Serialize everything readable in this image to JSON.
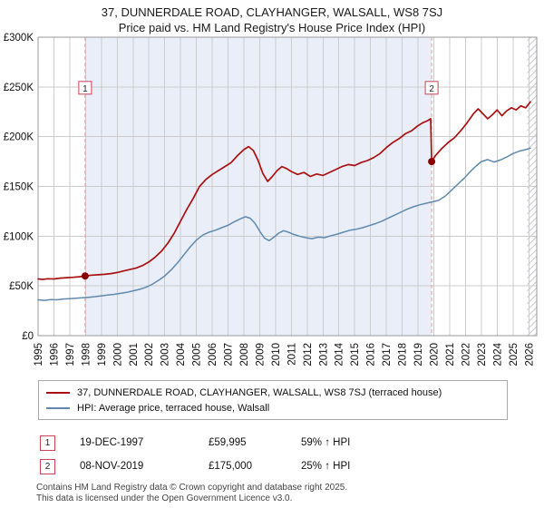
{
  "header": {
    "title": "37, DUNNERDALE ROAD, CLAYHANGER, WALSALL, WS8 7SJ",
    "subtitle": "Price paid vs. HM Land Registry's House Price Index (HPI)"
  },
  "chart_data": {
    "type": "line",
    "title": "37, DUNNERDALE ROAD, CLAYHANGER, WALSALL, WS8 7SJ",
    "subtitle": "Price paid vs. HM Land Registry's House Price Index (HPI)",
    "xlabel": "",
    "ylabel": "",
    "grid": true,
    "legend_position": "bottom",
    "xlim": [
      1995,
      2026.5
    ],
    "ylim": [
      0,
      300000
    ],
    "x_ticks": [
      1995,
      1996,
      1997,
      1998,
      1999,
      2000,
      2001,
      2002,
      2003,
      2004,
      2005,
      2006,
      2007,
      2008,
      2009,
      2010,
      2011,
      2012,
      2013,
      2014,
      2015,
      2016,
      2017,
      2018,
      2019,
      2020,
      2021,
      2022,
      2023,
      2024,
      2025,
      2026
    ],
    "y_ticks": [
      {
        "value": 0,
        "label": "£0"
      },
      {
        "value": 50000,
        "label": "£50K"
      },
      {
        "value": 100000,
        "label": "£100K"
      },
      {
        "value": 150000,
        "label": "£150K"
      },
      {
        "value": 200000,
        "label": "£200K"
      },
      {
        "value": 250000,
        "label": "£250K"
      },
      {
        "value": 300000,
        "label": "£300K"
      }
    ],
    "shaded_region": {
      "from": 1997.97,
      "to": 2019.86
    },
    "hatched_region": {
      "from": 2025.9,
      "to": 2026.5
    },
    "colors": {
      "shade": "#e9eef8",
      "grid": "#cccccc",
      "border": "#999999",
      "sale_line": "#e89a9a",
      "marker": "#8b0000",
      "marker_box_border": "#cc4455",
      "hatch": "#b9b9c9"
    },
    "markers": [
      {
        "label": "1",
        "x": 1997.97,
        "y": 59995
      },
      {
        "label": "2",
        "x": 2019.86,
        "y": 175000
      }
    ],
    "series": [
      {
        "name": "37, DUNNERDALE ROAD, CLAYHANGER, WALSALL, WS8 7SJ (terraced house)",
        "color": "#aa1111",
        "stroke_width": 1.7,
        "points": [
          [
            1995,
            57000
          ],
          [
            1995.3,
            56500
          ],
          [
            1995.6,
            57200
          ],
          [
            1996,
            57000
          ],
          [
            1996.4,
            57800
          ],
          [
            1996.8,
            58300
          ],
          [
            1997.2,
            58600
          ],
          [
            1997.6,
            59200
          ],
          [
            1997.97,
            59995
          ],
          [
            1998.4,
            60800
          ],
          [
            1998.8,
            61200
          ],
          [
            1999.2,
            61600
          ],
          [
            1999.6,
            62400
          ],
          [
            2000,
            63500
          ],
          [
            2000.4,
            65000
          ],
          [
            2000.8,
            66500
          ],
          [
            2001.2,
            68000
          ],
          [
            2001.6,
            70500
          ],
          [
            2002,
            74000
          ],
          [
            2002.4,
            79000
          ],
          [
            2002.8,
            85000
          ],
          [
            2003.2,
            93000
          ],
          [
            2003.6,
            103000
          ],
          [
            2004,
            115000
          ],
          [
            2004.4,
            127000
          ],
          [
            2004.8,
            138000
          ],
          [
            2005.2,
            150000
          ],
          [
            2005.6,
            157000
          ],
          [
            2006,
            162000
          ],
          [
            2006.4,
            166000
          ],
          [
            2006.8,
            170000
          ],
          [
            2007.2,
            174000
          ],
          [
            2007.6,
            181000
          ],
          [
            2008,
            187000
          ],
          [
            2008.3,
            190000
          ],
          [
            2008.6,
            186000
          ],
          [
            2008.9,
            176000
          ],
          [
            2009.2,
            163000
          ],
          [
            2009.5,
            155000
          ],
          [
            2009.8,
            160000
          ],
          [
            2010.1,
            166000
          ],
          [
            2010.4,
            170000
          ],
          [
            2010.7,
            168000
          ],
          [
            2011,
            165000
          ],
          [
            2011.4,
            162000
          ],
          [
            2011.8,
            164000
          ],
          [
            2012.2,
            160000
          ],
          [
            2012.6,
            162500
          ],
          [
            2013,
            161000
          ],
          [
            2013.4,
            164000
          ],
          [
            2013.8,
            167000
          ],
          [
            2014.2,
            170000
          ],
          [
            2014.6,
            172000
          ],
          [
            2015,
            171000
          ],
          [
            2015.4,
            174000
          ],
          [
            2015.8,
            176000
          ],
          [
            2016.2,
            179000
          ],
          [
            2016.6,
            183000
          ],
          [
            2017,
            189000
          ],
          [
            2017.4,
            194000
          ],
          [
            2017.8,
            198000
          ],
          [
            2018.2,
            203000
          ],
          [
            2018.6,
            206000
          ],
          [
            2019,
            211000
          ],
          [
            2019.3,
            214000
          ],
          [
            2019.6,
            216000
          ],
          [
            2019.8,
            218000
          ],
          [
            2019.86,
            175000
          ],
          [
            2020.1,
            181000
          ],
          [
            2020.5,
            188000
          ],
          [
            2020.9,
            194000
          ],
          [
            2021.3,
            199000
          ],
          [
            2021.7,
            206000
          ],
          [
            2022.1,
            214000
          ],
          [
            2022.5,
            223000
          ],
          [
            2022.8,
            228000
          ],
          [
            2023.1,
            223000
          ],
          [
            2023.4,
            218000
          ],
          [
            2023.7,
            222000
          ],
          [
            2024,
            227000
          ],
          [
            2024.3,
            221000
          ],
          [
            2024.6,
            226000
          ],
          [
            2024.9,
            229000
          ],
          [
            2025.2,
            227000
          ],
          [
            2025.5,
            231000
          ],
          [
            2025.8,
            229000
          ],
          [
            2026.1,
            235000
          ]
        ]
      },
      {
        "name": "HPI: Average price, terraced house, Walsall",
        "color": "#6189ae",
        "stroke_width": 1.5,
        "points": [
          [
            1995,
            36000
          ],
          [
            1995.4,
            35500
          ],
          [
            1995.8,
            36200
          ],
          [
            1996.2,
            36000
          ],
          [
            1996.6,
            36800
          ],
          [
            1997,
            37200
          ],
          [
            1997.4,
            37600
          ],
          [
            1997.8,
            38000
          ],
          [
            1998.2,
            38600
          ],
          [
            1998.6,
            39200
          ],
          [
            1999,
            40000
          ],
          [
            1999.4,
            40800
          ],
          [
            1999.8,
            41500
          ],
          [
            2000.2,
            42500
          ],
          [
            2000.6,
            43500
          ],
          [
            2001,
            45000
          ],
          [
            2001.4,
            46500
          ],
          [
            2001.8,
            48500
          ],
          [
            2002.2,
            51500
          ],
          [
            2002.6,
            55500
          ],
          [
            2003,
            60000
          ],
          [
            2003.4,
            66000
          ],
          [
            2003.8,
            73000
          ],
          [
            2004.2,
            81000
          ],
          [
            2004.6,
            89000
          ],
          [
            2005,
            96000
          ],
          [
            2005.4,
            101000
          ],
          [
            2005.8,
            104000
          ],
          [
            2006.2,
            106000
          ],
          [
            2006.6,
            108500
          ],
          [
            2007,
            111000
          ],
          [
            2007.4,
            114500
          ],
          [
            2007.8,
            117500
          ],
          [
            2008.1,
            119500
          ],
          [
            2008.4,
            118000
          ],
          [
            2008.7,
            113000
          ],
          [
            2009,
            105000
          ],
          [
            2009.3,
            98000
          ],
          [
            2009.6,
            95500
          ],
          [
            2009.9,
            99000
          ],
          [
            2010.2,
            103000
          ],
          [
            2010.5,
            105500
          ],
          [
            2010.8,
            104000
          ],
          [
            2011.1,
            102000
          ],
          [
            2011.5,
            100000
          ],
          [
            2011.9,
            98500
          ],
          [
            2012.3,
            97500
          ],
          [
            2012.7,
            99000
          ],
          [
            2013.1,
            98500
          ],
          [
            2013.5,
            100500
          ],
          [
            2013.9,
            102000
          ],
          [
            2014.3,
            104000
          ],
          [
            2014.7,
            106000
          ],
          [
            2015.1,
            107000
          ],
          [
            2015.5,
            108500
          ],
          [
            2015.9,
            110500
          ],
          [
            2016.3,
            112500
          ],
          [
            2016.7,
            115000
          ],
          [
            2017.1,
            118000
          ],
          [
            2017.5,
            121000
          ],
          [
            2017.9,
            124000
          ],
          [
            2018.3,
            127000
          ],
          [
            2018.7,
            129500
          ],
          [
            2019.1,
            131500
          ],
          [
            2019.5,
            133000
          ],
          [
            2019.9,
            134500
          ],
          [
            2020.3,
            136000
          ],
          [
            2020.7,
            140000
          ],
          [
            2021.1,
            146000
          ],
          [
            2021.5,
            152000
          ],
          [
            2021.9,
            158000
          ],
          [
            2022.3,
            165000
          ],
          [
            2022.7,
            171000
          ],
          [
            2023,
            175000
          ],
          [
            2023.4,
            177000
          ],
          [
            2023.8,
            174500
          ],
          [
            2024.2,
            176500
          ],
          [
            2024.6,
            179500
          ],
          [
            2025,
            183000
          ],
          [
            2025.4,
            185500
          ],
          [
            2025.8,
            187000
          ],
          [
            2026.1,
            188500
          ]
        ]
      }
    ]
  },
  "transactions": [
    {
      "num": "1",
      "date": "19-DEC-1997",
      "price": "£59,995",
      "hpi_change": "59% ↑ HPI"
    },
    {
      "num": "2",
      "date": "08-NOV-2019",
      "price": "£175,000",
      "hpi_change": "25% ↑ HPI"
    }
  ],
  "footer": {
    "line1": "Contains HM Land Registry data © Crown copyright and database right 2025.",
    "line2": "This data is licensed under the Open Government Licence v3.0."
  }
}
